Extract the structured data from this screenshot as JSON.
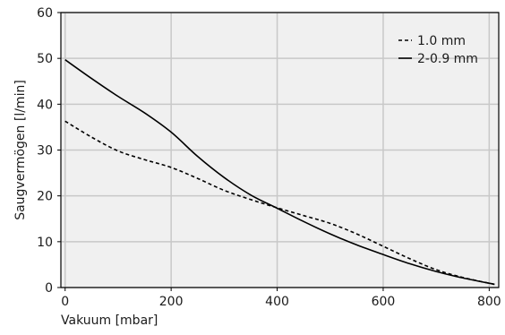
{
  "chart_data": {
    "type": "line",
    "title": "",
    "xlabel": "Vakuum [mbar]",
    "ylabel": "Saugvermögen [l/min]",
    "xlim": [
      -8,
      818
    ],
    "ylim": [
      0,
      60
    ],
    "xticks": [
      0,
      200,
      400,
      600,
      800
    ],
    "yticks": [
      0,
      10,
      20,
      30,
      40,
      50,
      60
    ],
    "grid": true,
    "background": "#f0f0f0",
    "grid_color": "#c8c8c8",
    "line_color": "#000000",
    "legend_position": "top-right",
    "series": [
      {
        "name": "1.0 mm",
        "style": "dashed",
        "x": [
          0,
          50,
          100,
          150,
          200,
          250,
          300,
          350,
          400,
          450,
          500,
          550,
          600,
          650,
          700,
          750,
          810
        ],
        "y": [
          36.3,
          32.8,
          29.8,
          27.9,
          26.2,
          23.8,
          21.2,
          19.2,
          17.4,
          15.7,
          14.0,
          11.7,
          9.0,
          6.3,
          3.9,
          2.2,
          0.7
        ]
      },
      {
        "name": "2-0.9 mm",
        "style": "solid",
        "x": [
          0,
          50,
          100,
          150,
          200,
          250,
          300,
          350,
          400,
          450,
          500,
          550,
          600,
          650,
          700,
          750,
          810
        ],
        "y": [
          49.7,
          45.6,
          41.7,
          38.1,
          33.9,
          28.6,
          24.0,
          20.2,
          17.3,
          14.4,
          11.7,
          9.3,
          7.2,
          5.2,
          3.5,
          2.1,
          0.7
        ]
      }
    ]
  }
}
